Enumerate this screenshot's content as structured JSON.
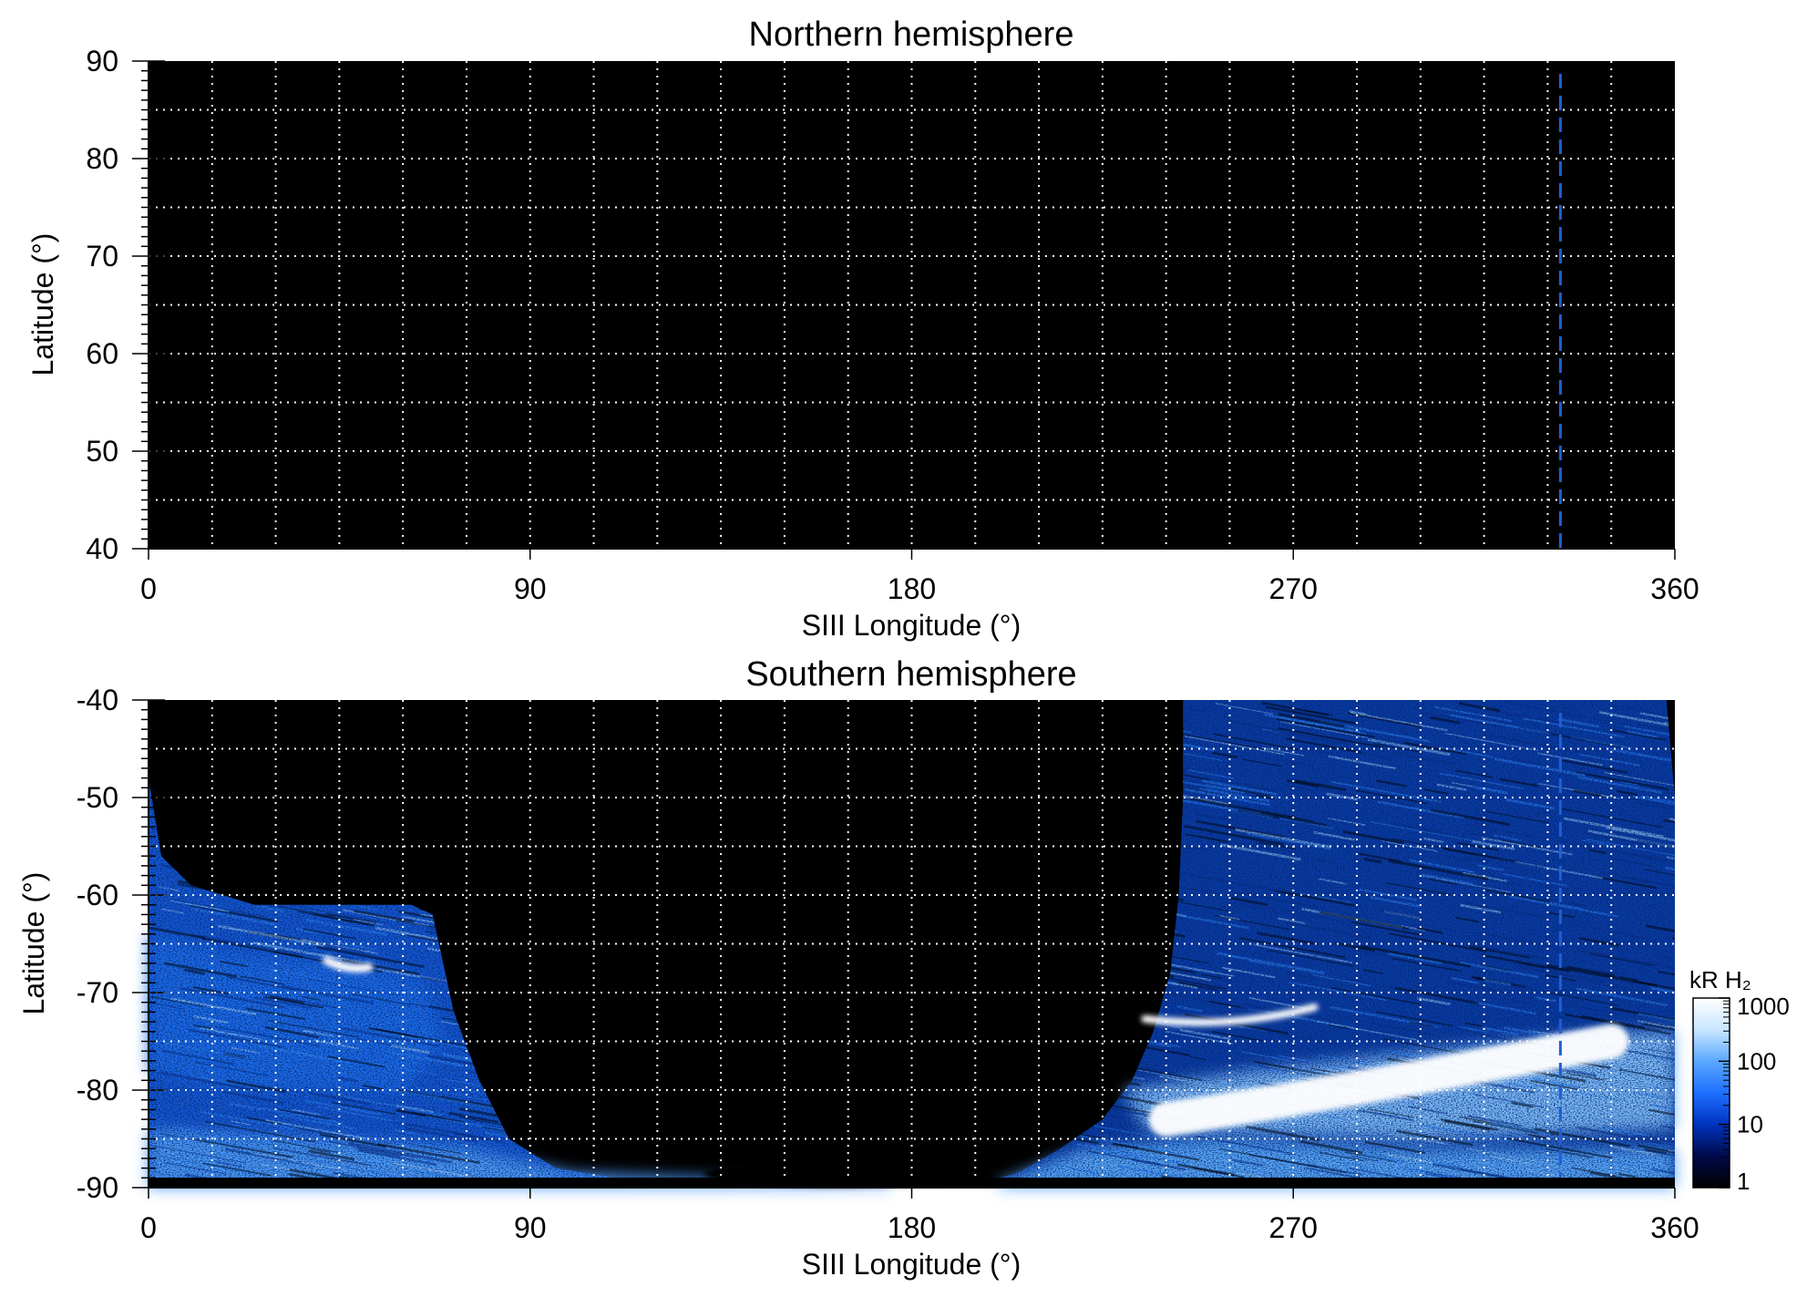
{
  "chart_data": [
    {
      "type": "heatmap",
      "title": "Northern hemisphere",
      "xlabel": "SIII Longitude (°)",
      "ylabel": "Latitude (°)",
      "xlim": [
        0,
        360
      ],
      "ylim": [
        40,
        90
      ],
      "xticks": [
        "0",
        "90",
        "180",
        "270",
        "360"
      ],
      "yticks": [
        "40",
        "50",
        "60",
        "70",
        "80",
        "90"
      ],
      "xtick_values": [
        0,
        90,
        180,
        270,
        360
      ],
      "ytick_values": [
        40,
        50,
        60,
        70,
        80,
        90
      ],
      "grid": true,
      "grid_x_step": 15,
      "grid_y_step": 5,
      "reference_longitude": 333,
      "reference_line_color": "#1f5fd6",
      "background_color": "#000000"
    },
    {
      "type": "heatmap",
      "title": "Southern hemisphere",
      "xlabel": "SIII Longitude (°)",
      "ylabel": "Latitude (°)",
      "xlim": [
        0,
        360
      ],
      "ylim": [
        -90,
        -40
      ],
      "xticks": [
        "0",
        "90",
        "180",
        "270",
        "360"
      ],
      "yticks": [
        "-90",
        "-80",
        "-70",
        "-60",
        "-50",
        "-40"
      ],
      "xtick_values": [
        0,
        90,
        180,
        270,
        360
      ],
      "ytick_values": [
        -90,
        -80,
        -70,
        -60,
        -50,
        -40
      ],
      "grid": true,
      "grid_x_step": 15,
      "grid_y_step": 5,
      "reference_longitude": 333,
      "reference_line_color": "#1f5fd6",
      "background_color": "#000000",
      "colorbar": {
        "label": "kR H₂",
        "scale": "log",
        "range": [
          1,
          1000
        ],
        "ticks": [
          "1",
          "10",
          "100",
          "1000"
        ],
        "tick_values": [
          1,
          10,
          100,
          1000
        ],
        "colors": [
          "#000000",
          "#000a4a",
          "#0033bf",
          "#1e6fff",
          "#5aa8ff",
          "#c8e6ff",
          "#ffffff"
        ]
      },
      "features": {
        "emission_region_1_lon": [
          0,
          67
        ],
        "emission_region_2_lon": [
          218,
          360
        ],
        "bright_arc_1": {
          "lon": [
            42,
            52
          ],
          "lat": -67
        },
        "bright_arc_2": {
          "lon": [
            235,
            275
          ],
          "lat": -73
        },
        "main_oval": {
          "lon": [
            240,
            345
          ],
          "lat": [
            -83,
            -75
          ]
        }
      }
    }
  ]
}
